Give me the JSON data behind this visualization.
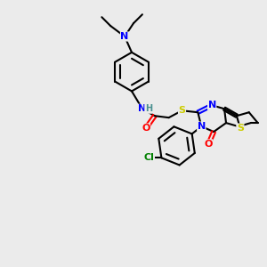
{
  "bg_color": "#ebebeb",
  "bond_color": "#000000",
  "bond_width": 1.5,
  "atom_colors": {
    "N": "#0000ff",
    "O": "#ff0000",
    "S": "#cccc00",
    "Cl": "#008000",
    "C": "#000000",
    "H": "#4a9090"
  },
  "font_size": 8,
  "fig_size": [
    3.0,
    3.0
  ],
  "dpi": 100
}
